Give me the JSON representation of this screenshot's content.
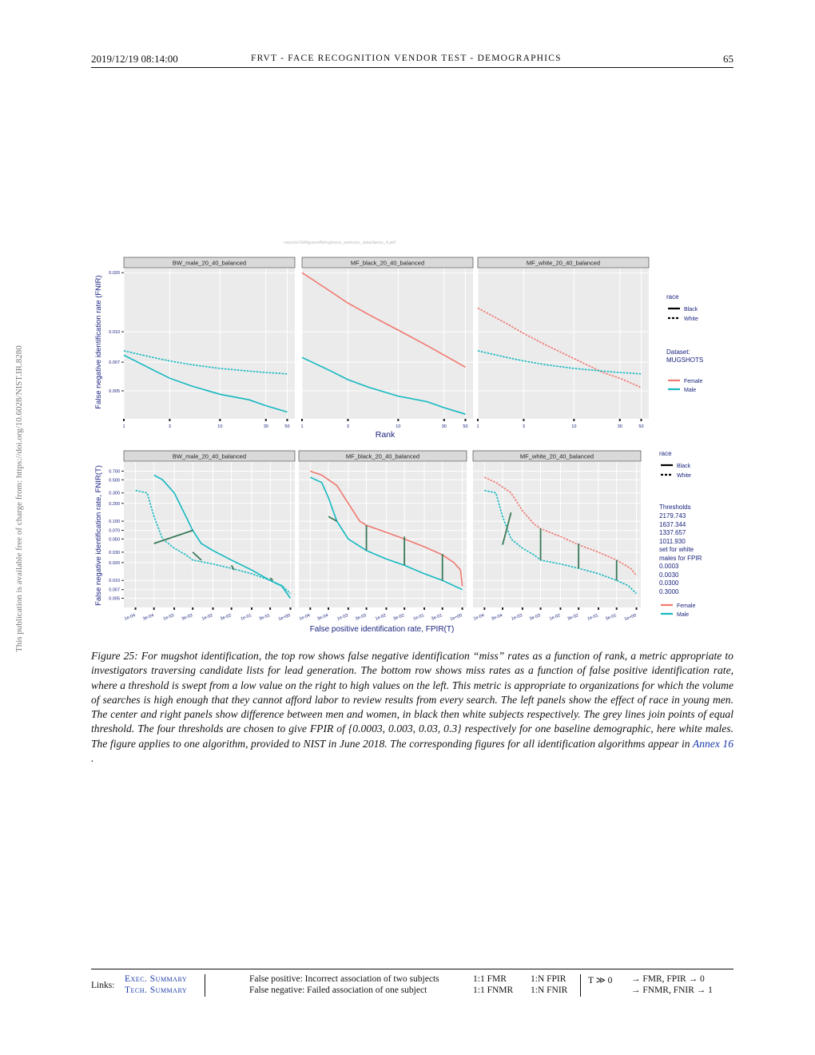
{
  "header": {
    "date": "2019/12/19  08:14:00",
    "title": "FRVT - FACE RECOGNITION VENDOR TEST - DEMOGRAPHICS",
    "page_number": "65"
  },
  "sidebar_text": "This publication is available free of charge from: https://doi.org/10.6028/NIST.IR.8280",
  "figure": {
    "source_path": "reports/1N/figures/fbi/ngi/race_sex/umc_data/demo_4.pdf",
    "top_row": {
      "panels": [
        "BW_male_20_40_balanced",
        "MF_black_20_40_balanced",
        "MF_white_20_40_balanced"
      ],
      "ylabel": "False negative identification rate (FNIR)",
      "xlabel": "Rank",
      "xticks": [
        "1",
        "3",
        "10",
        "30",
        "50"
      ],
      "yticks": [
        "0.005",
        "0.007",
        "0.010",
        "0.020"
      ]
    },
    "bottom_row": {
      "panels": [
        "BW_male_20_40_balanced",
        "MF_black_20_40_balanced",
        "MF_white_20_40_balanced"
      ],
      "ylabel": "False negative identification rate, FNIR(T)",
      "xlabel": "False positive identification rate, FPIR(T)",
      "xticks": [
        "1e-04",
        "3e-04",
        "1e-03",
        "3e-03",
        "1e-02",
        "3e-02",
        "1e-01",
        "3e-01",
        "1e+00"
      ],
      "yticks": [
        "0.005",
        "0.007",
        "0.010",
        "0.020",
        "0.030",
        "0.050",
        "0.070",
        "0.100",
        "0.200",
        "0.300",
        "0.500",
        "0.700"
      ]
    },
    "legend_top": {
      "race_title": "race",
      "race_items": [
        "Black",
        "White"
      ],
      "dataset_title": "Dataset:",
      "dataset_value": "MUGSHOTS",
      "sex_items": [
        "Female",
        "Male"
      ]
    },
    "legend_bottom": {
      "race_title": "race",
      "race_items": [
        "Black",
        "White"
      ],
      "thresholds_title": "Thresholds",
      "thresholds": [
        "2179.743",
        "1637.344",
        "1337.657",
        "1011.930"
      ],
      "set_note_1": "set for white",
      "set_note_2": "males for FPIR",
      "fpir_values": [
        "0.0003",
        "0.0030",
        "0.0300",
        "0.3000"
      ],
      "sex_items": [
        "Female",
        "Male"
      ]
    },
    "colors": {
      "female": "#f07870",
      "male": "#12b8c0",
      "connector": "#3a7a5a",
      "panel_bg": "#ebebeb",
      "strip_bg": "#d9d9d9"
    }
  },
  "chart_data": [
    {
      "type": "line",
      "title": "BW_male_20_40_balanced",
      "xlabel": "Rank",
      "ylabel": "False negative identification rate (FNIR)",
      "xscale": "log",
      "yscale": "log",
      "xlim": [
        1,
        60
      ],
      "ylim": [
        0.0036,
        0.021
      ],
      "series": [
        {
          "name": "Male Black",
          "x": [
            1,
            2,
            3,
            5,
            10,
            20,
            30,
            50
          ],
          "values": [
            0.0076,
            0.0064,
            0.0058,
            0.0053,
            0.0048,
            0.0045,
            0.0042,
            0.0039
          ]
        },
        {
          "name": "Male White",
          "x": [
            1,
            2,
            3,
            5,
            10,
            20,
            30,
            50
          ],
          "values": [
            0.008,
            0.0074,
            0.0071,
            0.0068,
            0.0065,
            0.0063,
            0.0062,
            0.0061
          ]
        }
      ]
    },
    {
      "type": "line",
      "title": "MF_black_20_40_balanced",
      "xlabel": "Rank",
      "ylabel": "False negative identification rate (FNIR)",
      "xscale": "log",
      "yscale": "log",
      "xlim": [
        1,
        60
      ],
      "ylim": [
        0.0036,
        0.021
      ],
      "series": [
        {
          "name": "Female Black",
          "x": [
            1,
            2,
            3,
            5,
            10,
            20,
            30,
            50
          ],
          "values": [
            0.02,
            0.016,
            0.014,
            0.0122,
            0.0102,
            0.0085,
            0.0076,
            0.0066
          ]
        },
        {
          "name": "Male Black",
          "x": [
            1,
            2,
            3,
            5,
            10,
            20,
            30,
            50
          ],
          "values": [
            0.0074,
            0.0063,
            0.0057,
            0.0052,
            0.0047,
            0.0044,
            0.0041,
            0.0038
          ]
        }
      ]
    },
    {
      "type": "line",
      "title": "MF_white_20_40_balanced",
      "xlabel": "Rank",
      "ylabel": "False negative identification rate (FNIR)",
      "xscale": "log",
      "yscale": "log",
      "xlim": [
        1,
        60
      ],
      "ylim": [
        0.0036,
        0.021
      ],
      "series": [
        {
          "name": "Female White",
          "x": [
            1,
            2,
            3,
            5,
            10,
            20,
            30,
            50
          ],
          "values": [
            0.0132,
            0.011,
            0.0098,
            0.0086,
            0.0073,
            0.0062,
            0.0058,
            0.0052
          ]
        },
        {
          "name": "Male White",
          "x": [
            1,
            2,
            3,
            5,
            10,
            20,
            30,
            50
          ],
          "values": [
            0.008,
            0.0074,
            0.0071,
            0.0068,
            0.0065,
            0.0063,
            0.0062,
            0.0061
          ]
        }
      ]
    },
    {
      "type": "line",
      "title": "BW_male_20_40_balanced",
      "xlabel": "False positive identification rate, FPIR(T)",
      "ylabel": "False negative identification rate, FNIR(T)",
      "xscale": "log",
      "yscale": "log",
      "xlim": [
        5e-05,
        1.3
      ],
      "ylim": [
        0.0035,
        1.0
      ],
      "series": [
        {
          "name": "Male Black",
          "x": [
            0.0003,
            0.0005,
            0.001,
            0.002,
            0.003,
            0.005,
            0.01,
            0.03,
            0.1,
            0.3,
            0.6,
            1.0
          ],
          "values": [
            0.6,
            0.5,
            0.3,
            0.12,
            0.07,
            0.042,
            0.032,
            0.022,
            0.015,
            0.01,
            0.008,
            0.005
          ]
        },
        {
          "name": "Male White",
          "x": [
            0.0001,
            0.0002,
            0.0003,
            0.0005,
            0.001,
            0.002,
            0.003,
            0.01,
            0.03,
            0.1,
            0.3,
            0.6,
            1.0
          ],
          "values": [
            0.33,
            0.3,
            0.12,
            0.05,
            0.035,
            0.027,
            0.022,
            0.019,
            0.016,
            0.013,
            0.01,
            0.0082,
            0.006
          ]
        }
      ]
    },
    {
      "type": "line",
      "title": "MF_black_20_40_balanced",
      "xlabel": "False positive identification rate, FPIR(T)",
      "ylabel": "False negative identification rate, FNIR(T)",
      "xscale": "log",
      "yscale": "log",
      "xlim": [
        5e-05,
        1.3
      ],
      "ylim": [
        0.0035,
        1.0
      ],
      "series": [
        {
          "name": "Female Black",
          "x": [
            0.0001,
            0.0002,
            0.0005,
            0.001,
            0.002,
            0.003,
            0.01,
            0.03,
            0.1,
            0.3,
            0.6,
            0.9,
            1.0
          ],
          "values": [
            0.7,
            0.6,
            0.4,
            0.2,
            0.1,
            0.085,
            0.065,
            0.05,
            0.037,
            0.027,
            0.02,
            0.015,
            0.008
          ]
        },
        {
          "name": "Male Black",
          "x": [
            0.0001,
            0.0002,
            0.0003,
            0.0005,
            0.001,
            0.003,
            0.01,
            0.03,
            0.1,
            0.3,
            1.0
          ],
          "values": [
            0.55,
            0.45,
            0.25,
            0.1,
            0.05,
            0.032,
            0.023,
            0.018,
            0.013,
            0.01,
            0.007
          ]
        }
      ]
    },
    {
      "type": "line",
      "title": "MF_white_20_40_balanced",
      "xlabel": "False positive identification rate, FPIR(T)",
      "ylabel": "False negative identification rate, FNIR(T)",
      "xscale": "log",
      "yscale": "log",
      "xlim": [
        5e-05,
        1.3
      ],
      "ylim": [
        0.0035,
        1.0
      ],
      "series": [
        {
          "name": "Female White",
          "x": [
            0.0001,
            0.0002,
            0.0005,
            0.001,
            0.002,
            0.003,
            0.01,
            0.03,
            0.1,
            0.3,
            0.7,
            1.0
          ],
          "values": [
            0.55,
            0.45,
            0.3,
            0.15,
            0.09,
            0.075,
            0.055,
            0.04,
            0.03,
            0.022,
            0.016,
            0.012
          ]
        },
        {
          "name": "Male White",
          "x": [
            0.0001,
            0.0002,
            0.0003,
            0.0005,
            0.001,
            0.002,
            0.003,
            0.01,
            0.03,
            0.1,
            0.3,
            0.6,
            1.0
          ],
          "values": [
            0.33,
            0.3,
            0.12,
            0.05,
            0.035,
            0.027,
            0.022,
            0.019,
            0.016,
            0.013,
            0.01,
            0.0082,
            0.006
          ]
        }
      ]
    }
  ],
  "caption": {
    "figure_label": "Figure 25:",
    "text": " For mugshot identification, the top row shows false negative identification “miss” rates as a function of rank, a metric appropriate to investigators traversing candidate lists for lead generation. The bottom row shows miss rates as a function of false positive identification rate, where a threshold is swept from a low value on the right to high values on the left. This metric is appropriate to organizations for which the volume of searches is high enough that they cannot afford labor to review results from every search. The left panels show the effect of race in young men. The center and right panels show difference between men and women, in black then white subjects respectively. The grey lines join points of equal threshold. The four thresholds are chosen to give FPIR of {0.0003, 0.003, 0.03, 0.3} respectively for one baseline demographic, here white males. The figure applies to one algorithm, provided to NIST in June 2018. The corresponding figures for all identification algorithms appear in",
    "annex_link": "Annex 16",
    "end": " ."
  },
  "footer": {
    "links_label": "Links:",
    "exec_summary": "Exec. Summary",
    "tech_summary": "Tech. Summary",
    "fp_def": "False positive: Incorrect association of two subjects",
    "fn_def": "False negative: Failed association of one subject",
    "fmr": "1:1 FMR",
    "fnmr": "1:1 FNMR",
    "fpir": "1:N FPIR",
    "fnir": "1:N FNIR",
    "threshold": "T ≫ 0",
    "arrow1": "→ FMR, FPIR → 0",
    "arrow2": "→ FNMR, FNIR → 1"
  }
}
